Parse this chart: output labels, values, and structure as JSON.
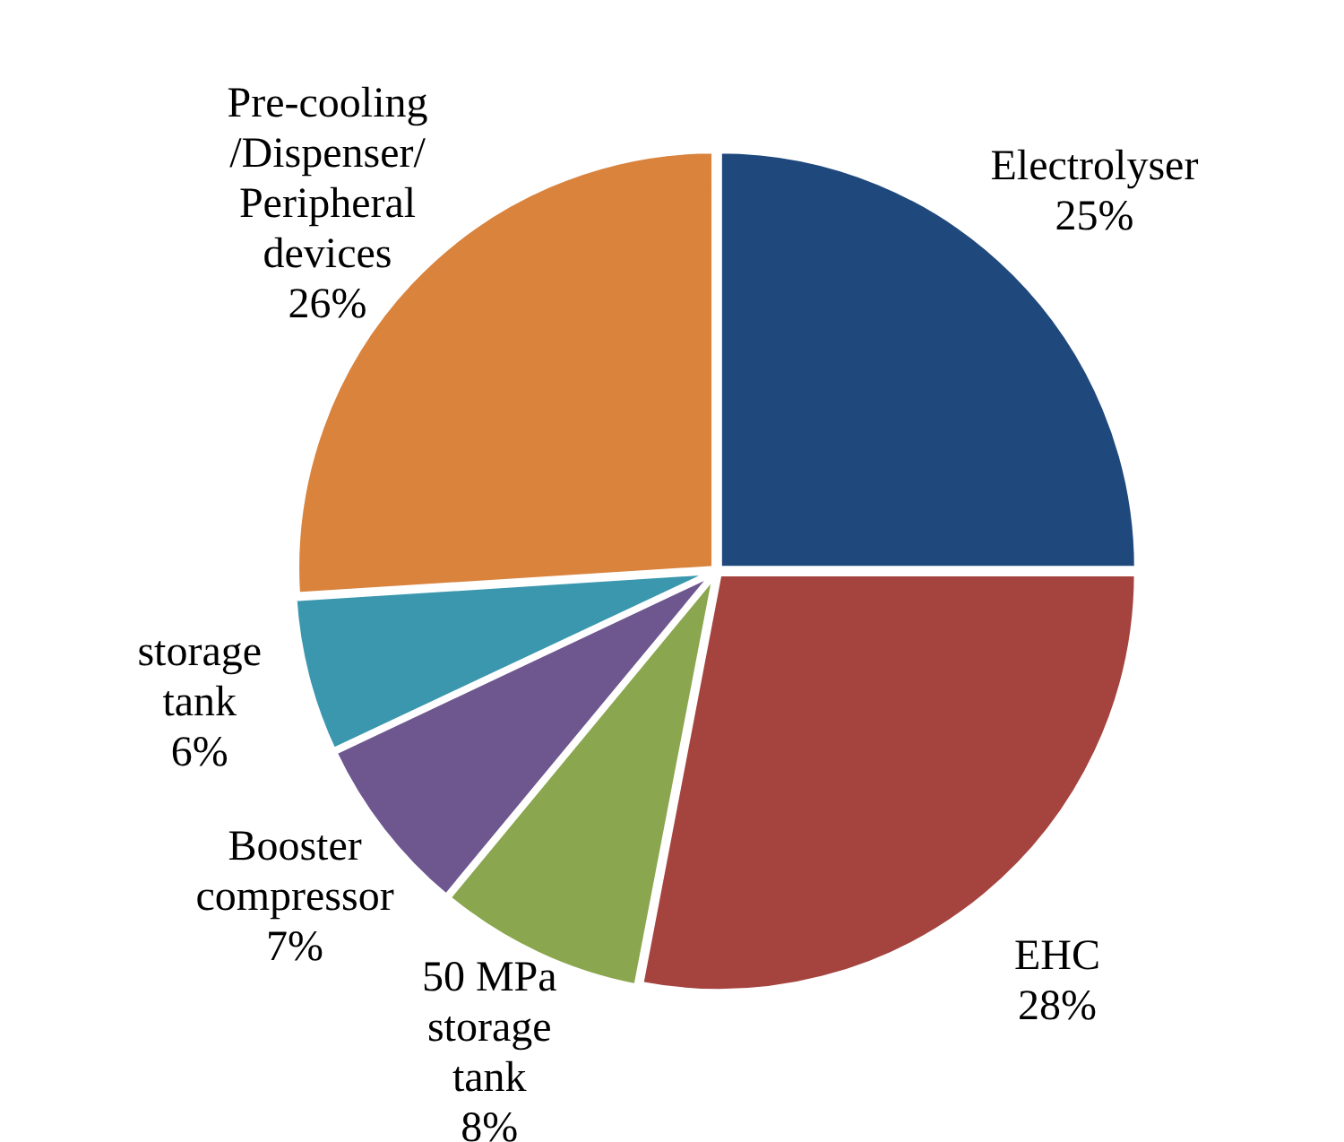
{
  "chart_data": {
    "type": "pie",
    "categories": [
      "Electrolyser",
      "EHC",
      "50 MPa storage tank",
      "Booster compressor",
      "storage tank",
      "Pre-cooling /Dispenser/ Peripheral devices"
    ],
    "values": [
      25,
      28,
      8,
      7,
      6,
      26
    ],
    "value_labels": [
      "25%",
      "28%",
      "8%",
      "7%",
      "6%",
      "26%"
    ],
    "colors": [
      "#1f497d",
      "#a5443f",
      "#8aa64e",
      "#6e568f",
      "#3a97ad",
      "#d9833d"
    ],
    "legend": false
  }
}
